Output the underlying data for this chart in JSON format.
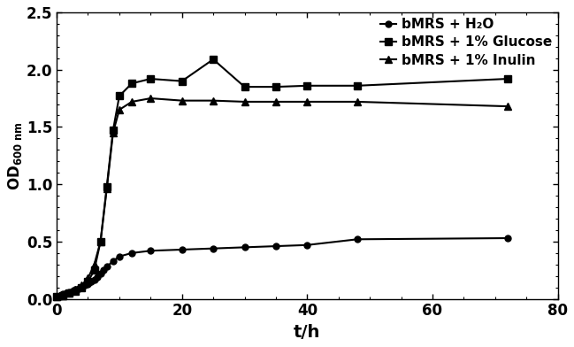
{
  "series": [
    {
      "label": "bMRS + H₂O",
      "marker": "o",
      "markersize": 5,
      "x": [
        0,
        0.5,
        1,
        1.5,
        2,
        2.5,
        3,
        3.5,
        4,
        4.5,
        5,
        5.5,
        6,
        6.5,
        7,
        7.5,
        8,
        9,
        10,
        12,
        15,
        20,
        25,
        30,
        35,
        40,
        48,
        72
      ],
      "y": [
        0.02,
        0.03,
        0.04,
        0.05,
        0.06,
        0.07,
        0.08,
        0.09,
        0.1,
        0.12,
        0.13,
        0.15,
        0.17,
        0.19,
        0.22,
        0.25,
        0.28,
        0.33,
        0.37,
        0.4,
        0.42,
        0.43,
        0.44,
        0.45,
        0.46,
        0.47,
        0.52,
        0.53
      ]
    },
    {
      "label": "bMRS + 1% Glucose",
      "marker": "s",
      "markersize": 6,
      "x": [
        0,
        1,
        2,
        3,
        4,
        5,
        6,
        7,
        8,
        9,
        10,
        12,
        15,
        20,
        25,
        30,
        35,
        40,
        48,
        72
      ],
      "y": [
        0.02,
        0.03,
        0.05,
        0.07,
        0.1,
        0.15,
        0.25,
        0.5,
        0.98,
        1.47,
        1.77,
        1.88,
        1.92,
        1.9,
        2.09,
        1.85,
        1.85,
        1.86,
        1.86,
        1.92
      ]
    },
    {
      "label": "bMRS + 1% Inulin",
      "marker": "^",
      "markersize": 6,
      "x": [
        0,
        1,
        2,
        3,
        4,
        5,
        6,
        7,
        8,
        9,
        10,
        12,
        15,
        20,
        25,
        30,
        35,
        40,
        48,
        72
      ],
      "y": [
        0.02,
        0.03,
        0.05,
        0.08,
        0.12,
        0.18,
        0.3,
        0.5,
        0.96,
        1.45,
        1.65,
        1.72,
        1.75,
        1.73,
        1.73,
        1.72,
        1.72,
        1.72,
        1.72,
        1.68
      ]
    }
  ],
  "xlabel": "t/h",
  "xlim": [
    0,
    78
  ],
  "ylim": [
    0,
    2.5
  ],
  "xticks": [
    0,
    20,
    40,
    60,
    80
  ],
  "yticks": [
    0.0,
    0.5,
    1.0,
    1.5,
    2.0,
    2.5
  ],
  "color": "#000000",
  "linewidth": 1.5,
  "tick_fontsize": 12,
  "xlabel_fontsize": 14,
  "ylabel_fontsize": 12,
  "legend_fontsize": 11,
  "background": "#ffffff"
}
